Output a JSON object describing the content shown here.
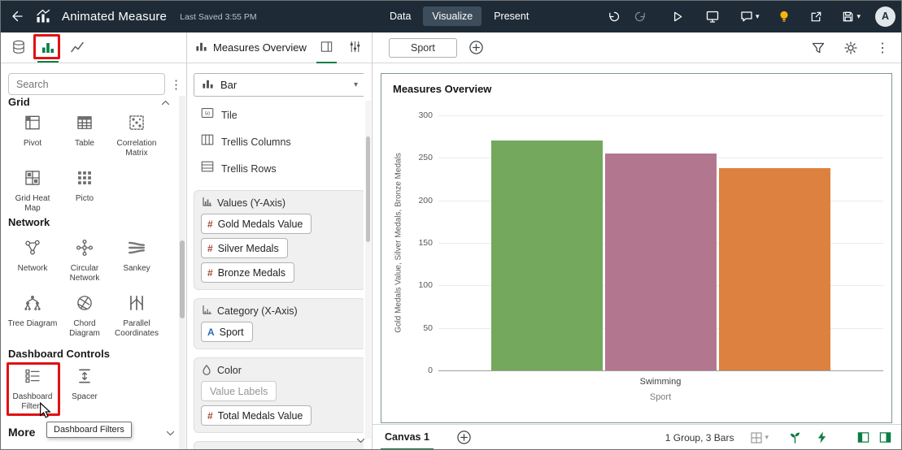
{
  "topbar": {
    "title": "Animated Measure",
    "last_saved": "Last Saved 3:55 PM",
    "nav": {
      "data": "Data",
      "visualize": "Visualize",
      "present": "Present"
    },
    "avatar_initial": "A"
  },
  "left_panel": {
    "search_placeholder": "Search",
    "sections": [
      {
        "title": "Grid",
        "items": [
          {
            "label": "Pivot"
          },
          {
            "label": "Table"
          },
          {
            "label": "Correlation Matrix"
          },
          {
            "label": "Grid Heat Map"
          },
          {
            "label": "Picto"
          }
        ]
      },
      {
        "title": "Network",
        "items": [
          {
            "label": "Network"
          },
          {
            "label": "Circular Network"
          },
          {
            "label": "Sankey"
          },
          {
            "label": "Tree Diagram"
          },
          {
            "label": "Chord Diagram"
          },
          {
            "label": "Parallel Coordinates"
          }
        ]
      },
      {
        "title": "Dashboard Controls",
        "items": [
          {
            "label": "Dashboard Filters"
          },
          {
            "label": "Spacer"
          }
        ]
      }
    ],
    "more_label": "More",
    "tooltip": "Dashboard Filters"
  },
  "grammar_panel": {
    "title": "Measures Overview",
    "chart_type": "Bar",
    "options": [
      {
        "label": "Tile",
        "icon_text": "50"
      },
      {
        "label": "Trellis Columns"
      },
      {
        "label": "Trellis Rows"
      }
    ],
    "drop_targets": [
      {
        "title": "Values (Y-Axis)",
        "pills": [
          {
            "type": "#",
            "label": "Gold Medals Value"
          },
          {
            "type": "#",
            "label": "Silver Medals"
          },
          {
            "type": "#",
            "label": "Bronze Medals"
          }
        ]
      },
      {
        "title": "Category (X-Axis)",
        "pills": [
          {
            "type": "A",
            "label": "Sport"
          }
        ]
      },
      {
        "title": "Color",
        "placeholder": "Value Labels",
        "pills": [
          {
            "type": "#",
            "label": "Total Medals Value"
          }
        ]
      }
    ]
  },
  "canvas": {
    "filter_chip": "Sport",
    "footer": {
      "tab": "Canvas 1",
      "status": "1 Group, 3 Bars"
    }
  },
  "chart_data": {
    "type": "bar",
    "title": "Measures Overview",
    "categories": [
      "Swimming"
    ],
    "series": [
      {
        "name": "Gold Medals Value",
        "values": [
          270
        ],
        "color": "#74a85c"
      },
      {
        "name": "Silver Medals",
        "values": [
          255
        ],
        "color": "#b3768f"
      },
      {
        "name": "Bronze Medals",
        "values": [
          238
        ],
        "color": "#dd8140"
      }
    ],
    "xlabel": "Sport",
    "ylabel": "Gold Medals Value, Silver Medals, Bronze Medals",
    "ylim": [
      0,
      300
    ],
    "yticks": [
      0,
      50,
      100,
      150,
      200,
      250,
      300
    ],
    "grid": true,
    "legend": "none"
  },
  "colors": {
    "accent_green": "#0c7d45",
    "annotation_red": "#e01212"
  }
}
